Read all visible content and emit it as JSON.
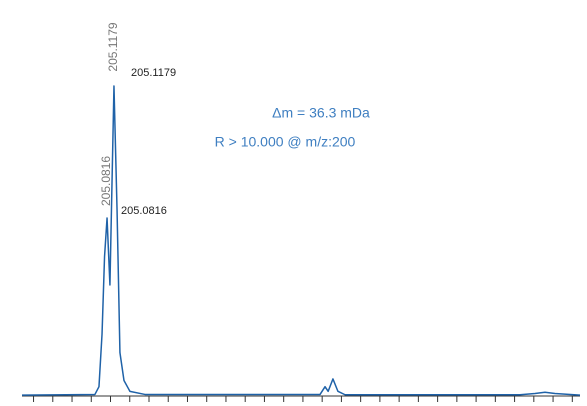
{
  "chart_data": {
    "type": "line",
    "peak_labels": [
      "205.1179",
      "205.0816"
    ],
    "notes": [
      "Δm = 36.3 mDa",
      "R > 10.000 @ m/z:200"
    ],
    "x": [
      204.64,
      205.019,
      205.04,
      205.056,
      205.069,
      205.082,
      205.097,
      205.118,
      205.134,
      205.149,
      205.17,
      205.201,
      205.279,
      206.189,
      206.215,
      206.231,
      206.256,
      206.282,
      206.319,
      207.228,
      207.306,
      207.358,
      207.41,
      207.54
    ],
    "values": [
      0.3,
      0.5,
      3,
      20,
      45,
      57.4,
      35.8,
      100,
      60,
      14,
      5,
      1.5,
      0.5,
      0.5,
      3,
      1.5,
      5.5,
      1.5,
      0.4,
      0.4,
      0.8,
      1.2,
      0.8,
      0.3
    ],
    "color": "#1f62a8",
    "xlim": [
      204.64,
      207.54
    ],
    "xticks": [
      204.7,
      204.8,
      204.9,
      205.0,
      205.1,
      205.2,
      205.3,
      205.4,
      205.5,
      205.6,
      205.7,
      205.8,
      205.9,
      206.0,
      206.1,
      206.2,
      206.3,
      206.4,
      206.5,
      206.6,
      206.7,
      206.8,
      206.9,
      207.0,
      207.1,
      207.2,
      207.3,
      207.4,
      207.5
    ],
    "ylim": [
      0,
      100
    ]
  }
}
